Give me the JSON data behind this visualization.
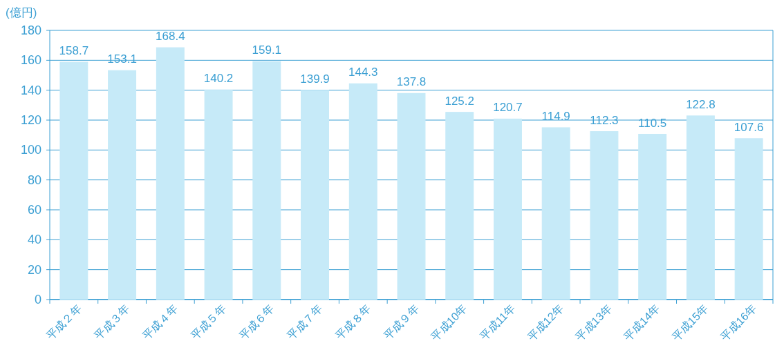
{
  "chart_data": {
    "type": "bar",
    "ylabel": "(億円)",
    "categories": [
      "平成２年",
      "平成３年",
      "平成４年",
      "平成５年",
      "平成６年",
      "平成７年",
      "平成８年",
      "平成９年",
      "平成10年",
      "平成11年",
      "平成12年",
      "平成13年",
      "平成14年",
      "平成15年",
      "平成16年"
    ],
    "values": [
      158.7,
      153.1,
      168.4,
      140.2,
      159.1,
      139.9,
      144.3,
      137.8,
      125.2,
      120.7,
      114.9,
      112.3,
      110.5,
      122.8,
      107.6
    ],
    "color": "#c6eaf8",
    "ylim": [
      0,
      180
    ],
    "yticks": [
      0,
      20,
      40,
      60,
      80,
      100,
      120,
      140,
      160,
      180
    ],
    "grid": "y",
    "data_labels": true
  }
}
